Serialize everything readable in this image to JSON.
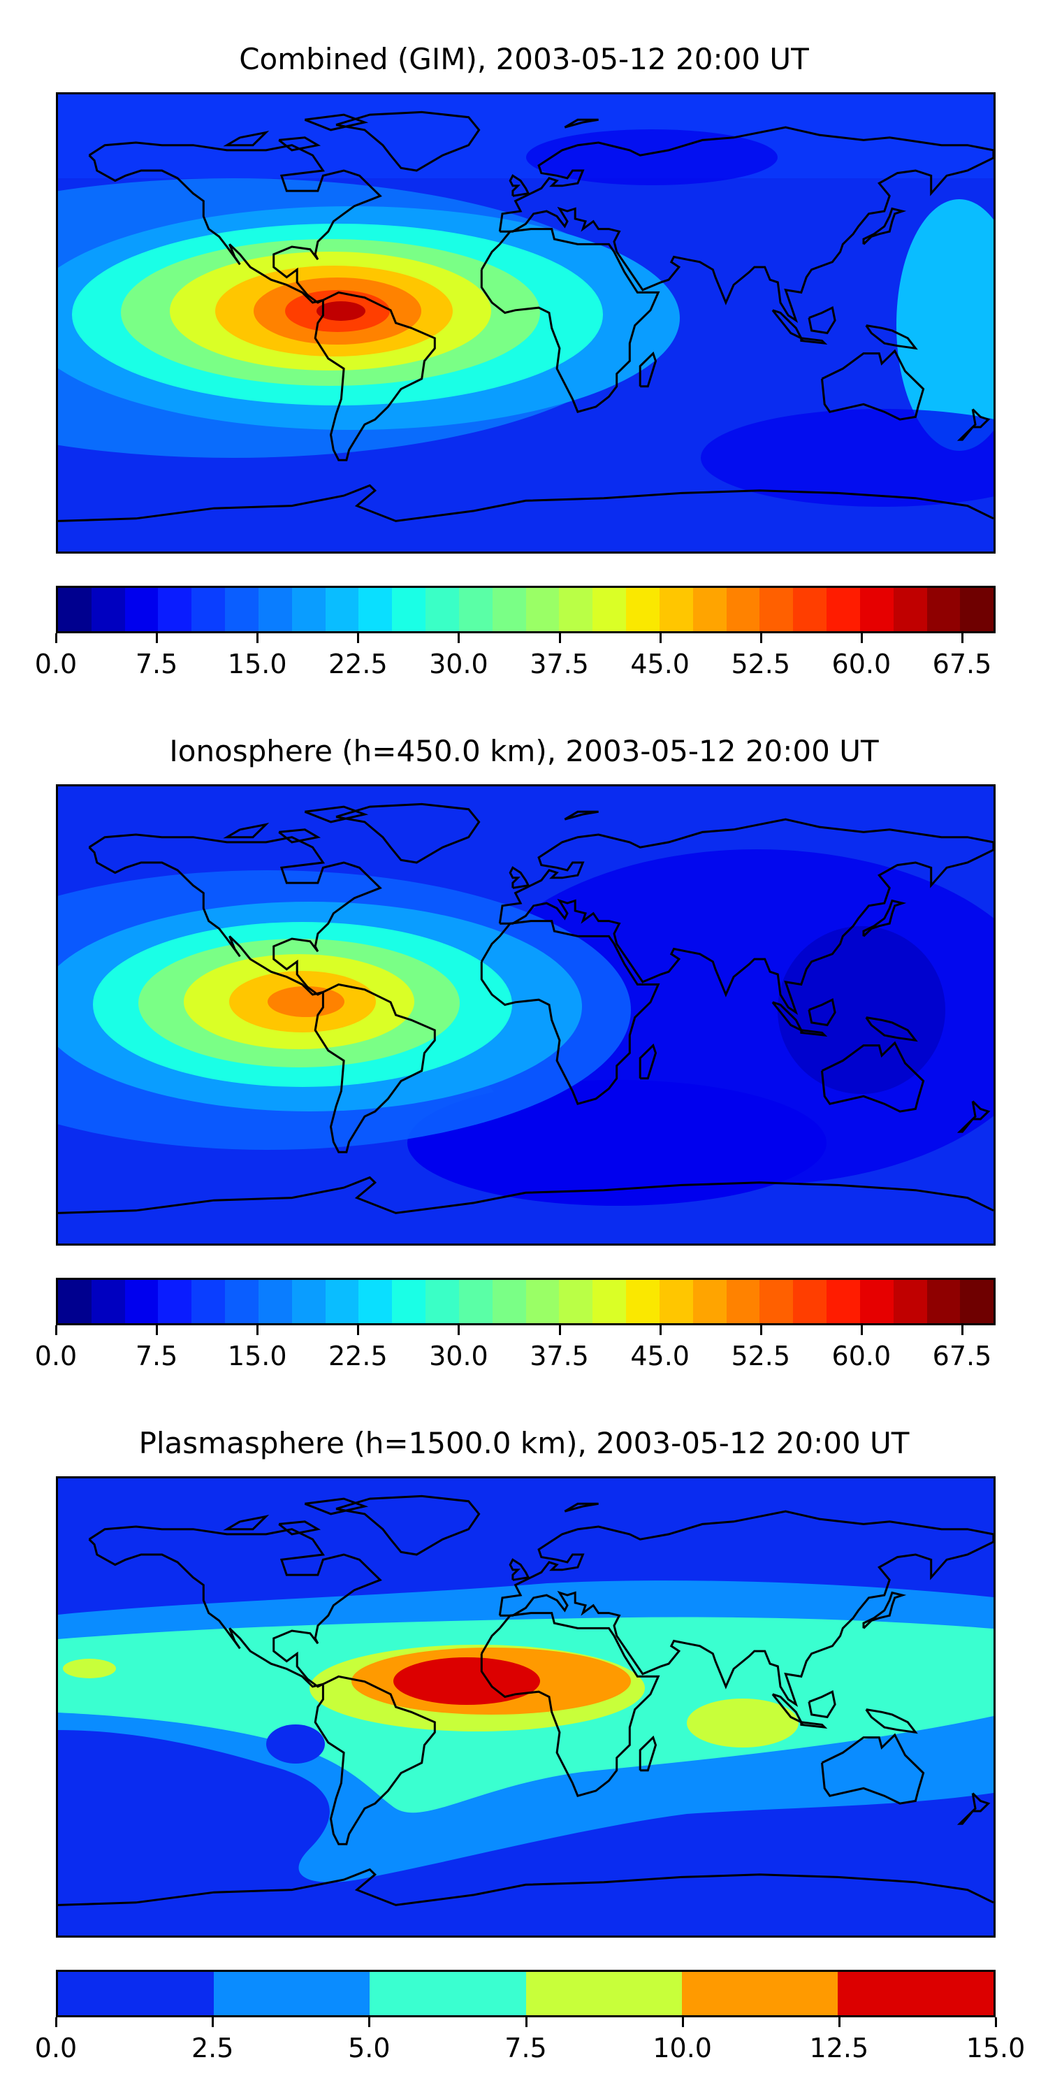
{
  "colors": {
    "fine_scale": [
      "#00008f",
      "#0000c0",
      "#0000ee",
      "#0a1cff",
      "#0a3eff",
      "#0a5eff",
      "#0a7dff",
      "#0a9dff",
      "#0abdff",
      "#0adfff",
      "#1affe6",
      "#3affc6",
      "#5affa6",
      "#7aff86",
      "#9aff66",
      "#baff46",
      "#daff26",
      "#fae800",
      "#ffc600",
      "#ffa400",
      "#ff8200",
      "#ff6000",
      "#ff3e00",
      "#ff1c00",
      "#e60000",
      "#c00000",
      "#8f0000",
      "#6f0000"
    ],
    "coarse_scale": [
      "#0a2cf0",
      "#0a8cff",
      "#3affd0",
      "#c8ff3a",
      "#ff9a00",
      "#dc0000"
    ],
    "coastline": "#000000"
  },
  "panels": [
    {
      "title": "Combined (GIM), 2003-05-12 20:00 UT",
      "colorbar_ticks": [
        "0.0",
        "7.5",
        "15.0",
        "22.5",
        "30.0",
        "37.5",
        "45.0",
        "52.5",
        "60.0",
        "67.5"
      ],
      "colorbar_range": [
        0,
        70
      ]
    },
    {
      "title": "Ionosphere  (h=450.0 km), 2003-05-12 20:00 UT",
      "colorbar_ticks": [
        "0.0",
        "7.5",
        "15.0",
        "22.5",
        "30.0",
        "37.5",
        "45.0",
        "52.5",
        "60.0",
        "67.5"
      ],
      "colorbar_range": [
        0,
        70
      ]
    },
    {
      "title": "Plasmasphere (h=1500.0 km), 2003-05-12 20:00 UT",
      "colorbar_ticks": [
        "0.0",
        "2.5",
        "5.0",
        "7.5",
        "10.0",
        "12.5",
        "15.0"
      ],
      "colorbar_range": [
        0,
        15
      ]
    }
  ]
}
